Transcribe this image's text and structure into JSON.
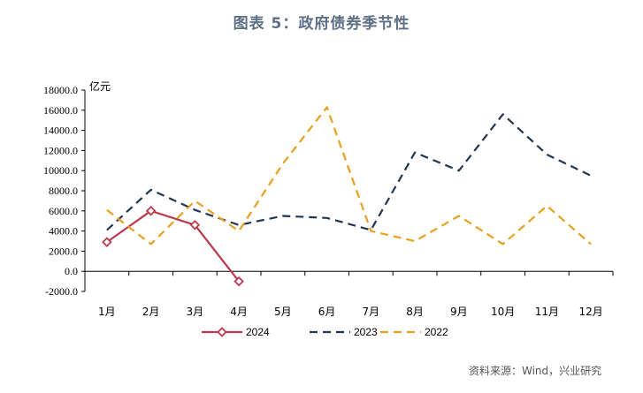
{
  "title": "图表 5：政府债券季节性",
  "source": "资料来源：Wind，兴业研究",
  "chart_data": {
    "type": "line",
    "ylabel": "亿元",
    "xlabel": "",
    "ylim": [
      -2000,
      18000
    ],
    "ytick_step": 2000,
    "ytick_labels": [
      "-2000.0",
      "0.0",
      "2000.0",
      "4000.0",
      "6000.0",
      "8000.0",
      "10000.0",
      "12000.0",
      "14000.0",
      "16000.0",
      "18000.0"
    ],
    "categories": [
      "1月",
      "2月",
      "3月",
      "4月",
      "5月",
      "6月",
      "7月",
      "8月",
      "9月",
      "10月",
      "11月",
      "12月"
    ],
    "legend_position": "bottom",
    "grid": false,
    "series": [
      {
        "name": "2024",
        "color": "#b83a4b",
        "style": "solid-diamond",
        "values": [
          2900,
          6000,
          4600,
          -1000,
          null,
          null,
          null,
          null,
          null,
          null,
          null,
          null
        ]
      },
      {
        "name": "2023",
        "color": "#233553",
        "style": "dashed",
        "values": [
          4100,
          8100,
          6100,
          4600,
          5500,
          5300,
          4100,
          11800,
          10000,
          15600,
          11600,
          9500
        ]
      },
      {
        "name": "2022",
        "color": "#e8a020",
        "style": "dashed",
        "values": [
          6100,
          2700,
          7000,
          4000,
          10700,
          16300,
          4000,
          3000,
          5500,
          2700,
          6500,
          2700
        ]
      }
    ]
  }
}
